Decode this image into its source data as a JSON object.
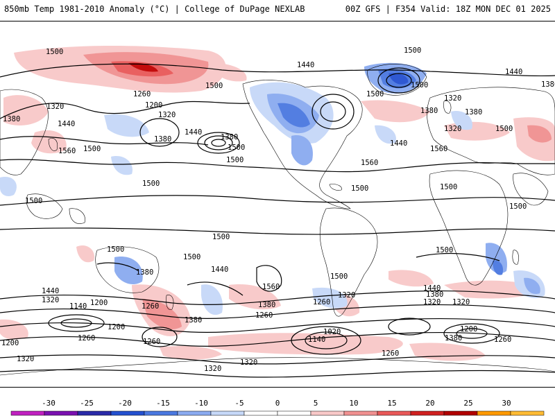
{
  "header": {
    "title_left": "850mb Temp 1981-2010 Anomaly (°C) | College of DuPage NEXLAB",
    "title_right": "00Z GFS | F354 Valid: 18Z MON DEC 01 2025"
  },
  "map": {
    "product": "850mb Temp Anomaly",
    "projection": "global",
    "contour_labels": [
      "1500",
      "1500",
      "1440",
      "1440",
      "1500",
      "1380",
      "1260",
      "1320",
      "1200",
      "1320",
      "1380",
      "1440",
      "1500",
      "1560",
      "1320",
      "1380",
      "1440",
      "1500",
      "1380",
      "1500",
      "1560",
      "1500",
      "1500",
      "1380",
      "1500",
      "1440",
      "1320",
      "1380",
      "1500",
      "1560",
      "1500",
      "1500",
      "1500",
      "1500",
      "1500",
      "1500",
      "1500",
      "1500",
      "1380",
      "1440",
      "1560",
      "1500",
      "1440",
      "1320",
      "1140",
      "1200",
      "1260",
      "1200",
      "1320",
      "1380",
      "1260",
      "1380",
      "1320",
      "1260",
      "1200",
      "1020",
      "1140",
      "1380",
      "1440",
      "1320",
      "1260",
      "1200",
      "1260",
      "1320",
      "1380",
      "1260",
      "1320",
      "1260",
      "1320"
    ]
  },
  "colorbar": {
    "unit": "°C",
    "ticks": [
      "-30",
      "-25",
      "-20",
      "-15",
      "-10",
      "-5",
      "0",
      "5",
      "10",
      "15",
      "20",
      "25",
      "30"
    ],
    "colors": [
      "#c020c0",
      "#7a10b0",
      "#2a2aa8",
      "#2450d0",
      "#4a78e0",
      "#8aaaf0",
      "#c6d8f8",
      "#ffffff",
      "#ffffff",
      "#f8c8c8",
      "#f09090",
      "#e85858",
      "#d02020",
      "#b00000",
      "#ff9900",
      "#ffbb33"
    ]
  }
}
